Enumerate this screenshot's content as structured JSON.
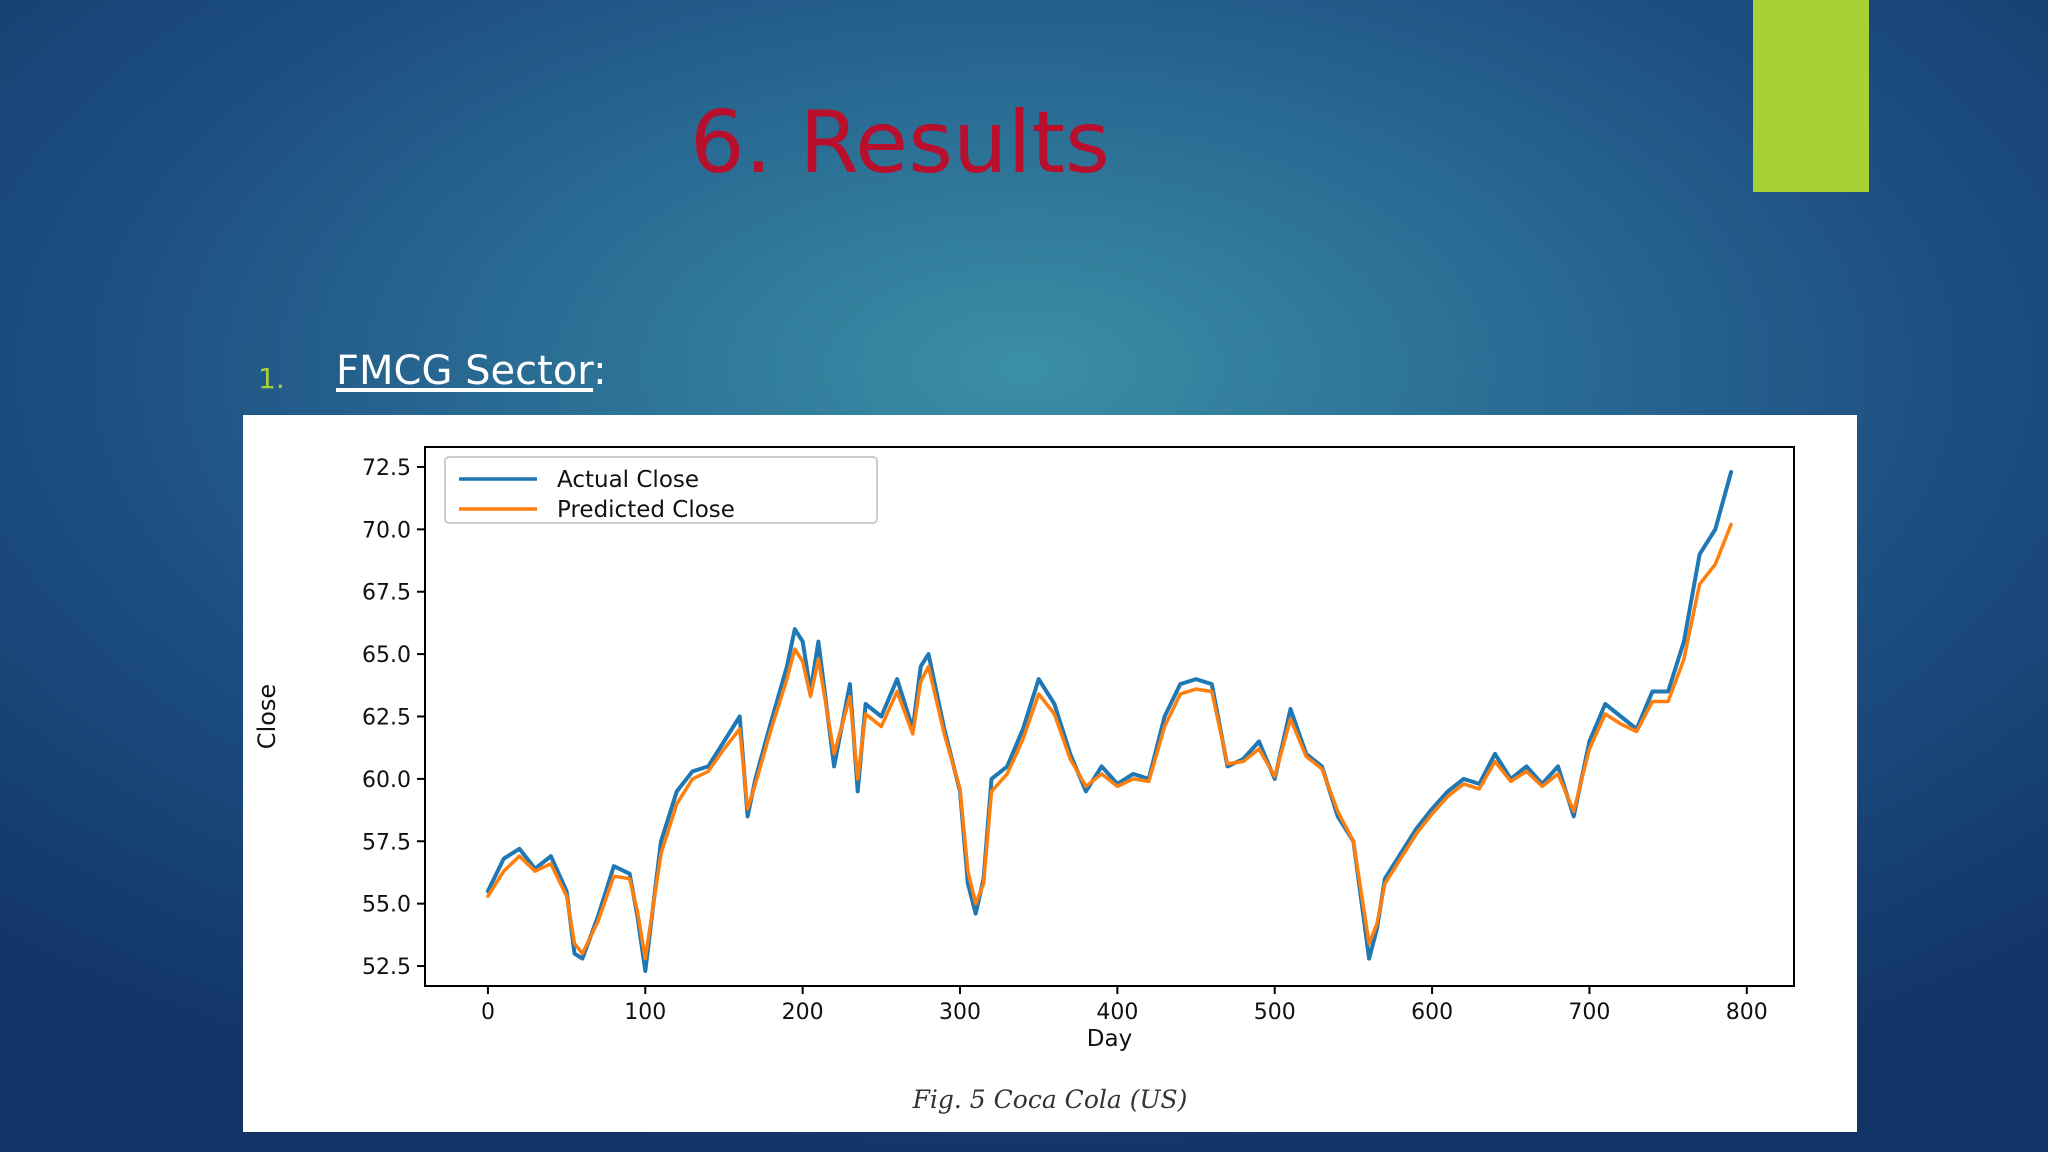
{
  "slide": {
    "title": "6. Results",
    "bullet_number": "1.",
    "bullet_label": "FMCG Sector",
    "bullet_suffix": ":",
    "caption": "Fig. 5 Coca Cola (US)",
    "accent_color": "#a7d236",
    "title_color": "#b8102c"
  },
  "chart_data": {
    "type": "line",
    "title": "",
    "xlabel": "Day",
    "ylabel": "Close",
    "xlim": [
      -40,
      830
    ],
    "ylim": [
      51.7,
      73.3
    ],
    "xticks": [
      0,
      100,
      200,
      300,
      400,
      500,
      600,
      700,
      800
    ],
    "xtick_labels": [
      "0",
      "100",
      "200",
      "300",
      "400",
      "500",
      "600",
      "700",
      "800"
    ],
    "yticks": [
      52.5,
      55.0,
      57.5,
      60.0,
      62.5,
      65.0,
      67.5,
      70.0,
      72.5
    ],
    "ytick_labels": [
      "52.5",
      "55.0",
      "57.5",
      "60.0",
      "62.5",
      "65.0",
      "67.5",
      "70.0",
      "72.5"
    ],
    "grid": false,
    "legend_position": "top-left",
    "x": [
      0,
      10,
      20,
      30,
      40,
      50,
      55,
      60,
      70,
      80,
      90,
      95,
      100,
      110,
      120,
      130,
      140,
      150,
      160,
      165,
      170,
      180,
      190,
      195,
      200,
      205,
      210,
      220,
      230,
      235,
      240,
      250,
      260,
      270,
      275,
      280,
      290,
      300,
      305,
      310,
      315,
      320,
      330,
      340,
      350,
      360,
      370,
      380,
      390,
      400,
      410,
      420,
      430,
      440,
      450,
      460,
      470,
      480,
      490,
      500,
      510,
      520,
      530,
      540,
      550,
      560,
      565,
      570,
      580,
      590,
      600,
      610,
      620,
      630,
      640,
      650,
      660,
      670,
      680,
      690,
      700,
      710,
      720,
      730,
      740,
      750,
      760,
      770,
      780,
      790
    ],
    "series": [
      {
        "name": "Actual Close",
        "color": "#1f77b4",
        "values": [
          55.5,
          56.8,
          57.2,
          56.4,
          56.9,
          55.5,
          53.0,
          52.8,
          54.5,
          56.5,
          56.2,
          54.5,
          52.3,
          57.5,
          59.5,
          60.3,
          60.5,
          61.5,
          62.5,
          58.5,
          60.0,
          62.3,
          64.5,
          66.0,
          65.5,
          63.5,
          65.5,
          60.5,
          63.8,
          59.5,
          63.0,
          62.5,
          64.0,
          62.0,
          64.5,
          65.0,
          62.0,
          59.5,
          55.8,
          54.6,
          56.0,
          60.0,
          60.5,
          62.0,
          64.0,
          63.0,
          61.0,
          59.5,
          60.5,
          59.8,
          60.2,
          60.0,
          62.5,
          63.8,
          64.0,
          63.8,
          60.5,
          60.8,
          61.5,
          60.0,
          62.8,
          61.0,
          60.5,
          58.5,
          57.5,
          52.8,
          54.0,
          56.0,
          57.0,
          58.0,
          58.8,
          59.5,
          60.0,
          59.8,
          61.0,
          60.0,
          60.5,
          59.8,
          60.5,
          58.5,
          61.5,
          63.0,
          62.5,
          62.0,
          63.5,
          63.5,
          65.5,
          69.0,
          70.0,
          72.3
        ]
      },
      {
        "name": "Predicted Close",
        "color": "#ff7f0e",
        "values": [
          55.3,
          56.3,
          56.9,
          56.3,
          56.6,
          55.3,
          53.4,
          53.0,
          54.3,
          56.1,
          56.0,
          54.7,
          52.8,
          57.0,
          59.0,
          60.0,
          60.3,
          61.2,
          62.0,
          58.8,
          59.8,
          62.0,
          64.0,
          65.2,
          64.7,
          63.3,
          64.8,
          61.0,
          63.3,
          60.0,
          62.6,
          62.1,
          63.5,
          61.8,
          63.9,
          64.5,
          61.8,
          59.6,
          56.3,
          55.0,
          55.8,
          59.5,
          60.2,
          61.6,
          63.4,
          62.6,
          60.8,
          59.7,
          60.2,
          59.7,
          60.0,
          59.9,
          62.1,
          63.4,
          63.6,
          63.5,
          60.6,
          60.7,
          61.2,
          60.1,
          62.4,
          60.9,
          60.4,
          58.7,
          57.5,
          53.4,
          54.2,
          55.8,
          56.8,
          57.8,
          58.6,
          59.3,
          59.8,
          59.6,
          60.7,
          59.9,
          60.3,
          59.7,
          60.2,
          58.7,
          61.2,
          62.6,
          62.2,
          61.9,
          63.1,
          63.1,
          64.8,
          67.8,
          68.6,
          70.2
        ]
      }
    ]
  }
}
